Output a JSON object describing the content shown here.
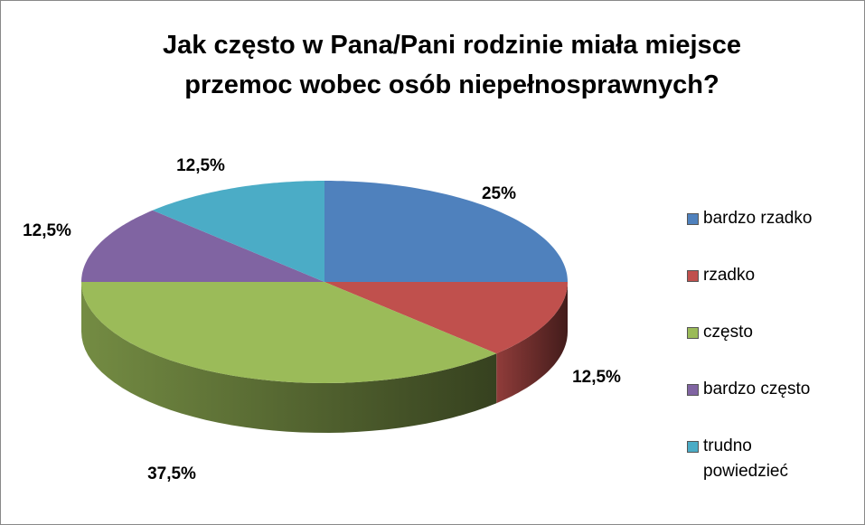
{
  "chart_data": {
    "type": "pie3d",
    "title": "Jak często w Pana/Pani  rodzinie miała miejsce przemoc wobec osób niepełnosprawnych?",
    "categories": [
      "bardzo rzadko",
      "rzadko",
      "często",
      "bardzo często",
      "trudno powiedzieć"
    ],
    "values": [
      25,
      12.5,
      37.5,
      12.5,
      12.5
    ],
    "value_labels": [
      "25%",
      "12,5%",
      "37,5%",
      "12,5%",
      "12,5%"
    ],
    "colors": [
      "#4f81bd",
      "#c0504d",
      "#9bbb59",
      "#8064a2",
      "#4bacc6"
    ],
    "legend": "right"
  }
}
